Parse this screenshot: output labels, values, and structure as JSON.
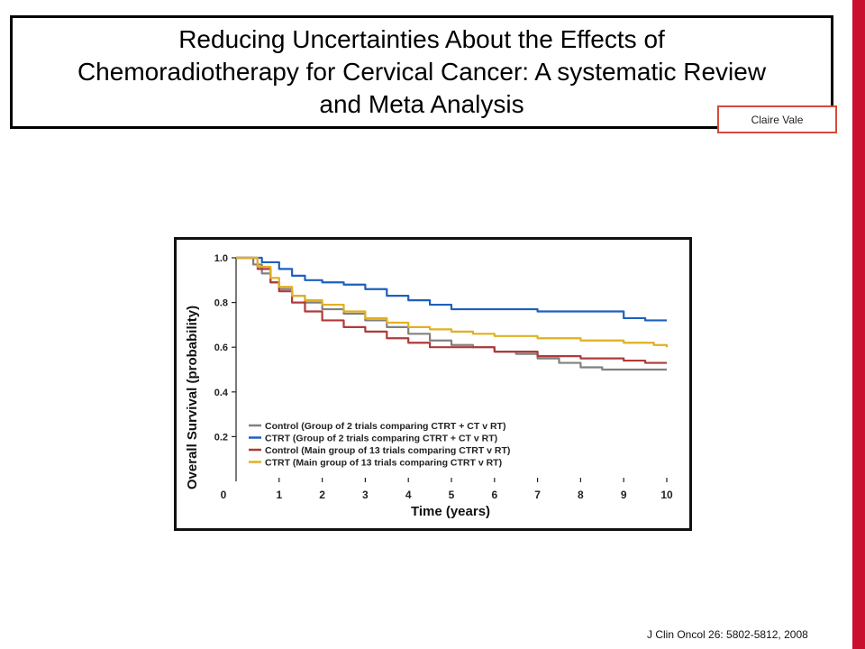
{
  "slide": {
    "title": "Reducing Uncertainties About the Effects of\nChemoradiotherapy for Cervical Cancer: A systematic Review\nand Meta Analysis",
    "author": "Claire Vale",
    "citation": "J Clin Oncol 26: 5802-5812, 2008",
    "accent_color": "#c8102e"
  },
  "chart_data": {
    "type": "line",
    "xlabel": "Time (years)",
    "ylabel": "Overall Survival (probability)",
    "xlim": [
      0,
      10
    ],
    "ylim": [
      0,
      1
    ],
    "x_ticks": [
      "0",
      "1",
      "2",
      "3",
      "4",
      "5",
      "6",
      "7",
      "8",
      "9",
      "10"
    ],
    "y_ticks": [
      "0.2",
      "0.4",
      "0.6",
      "0.8",
      "1.0"
    ],
    "y_tick_values": [
      0.2,
      0.4,
      0.6,
      0.8,
      1.0
    ],
    "legend_position": "bottom-left",
    "step": true,
    "series": [
      {
        "name": "Control (Group of 2 trials comparing CTRT + CT v RT)",
        "color": "#808080",
        "points": [
          [
            0,
            1.0
          ],
          [
            0.2,
            1.0
          ],
          [
            0.4,
            0.97
          ],
          [
            0.6,
            0.93
          ],
          [
            0.8,
            0.89
          ],
          [
            1,
            0.86
          ],
          [
            1.3,
            0.83
          ],
          [
            1.6,
            0.8
          ],
          [
            2,
            0.77
          ],
          [
            2.5,
            0.75
          ],
          [
            3,
            0.72
          ],
          [
            3.5,
            0.69
          ],
          [
            4,
            0.66
          ],
          [
            4.5,
            0.63
          ],
          [
            5,
            0.61
          ],
          [
            5.5,
            0.6
          ],
          [
            6,
            0.58
          ],
          [
            6.5,
            0.57
          ],
          [
            7,
            0.55
          ],
          [
            7.5,
            0.53
          ],
          [
            8,
            0.51
          ],
          [
            8.5,
            0.5
          ],
          [
            10,
            0.5
          ]
        ]
      },
      {
        "name": "CTRT (Group of 2 trials comparing CTRT + CT v RT)",
        "color": "#1f5fbf",
        "points": [
          [
            0,
            1.0
          ],
          [
            0.3,
            1.0
          ],
          [
            0.6,
            0.98
          ],
          [
            1,
            0.95
          ],
          [
            1.3,
            0.92
          ],
          [
            1.6,
            0.9
          ],
          [
            2,
            0.89
          ],
          [
            2.5,
            0.88
          ],
          [
            3,
            0.86
          ],
          [
            3.5,
            0.83
          ],
          [
            4,
            0.81
          ],
          [
            4.5,
            0.79
          ],
          [
            5,
            0.77
          ],
          [
            6,
            0.77
          ],
          [
            7,
            0.76
          ],
          [
            8.5,
            0.76
          ],
          [
            9,
            0.73
          ],
          [
            9.5,
            0.72
          ],
          [
            10,
            0.72
          ]
        ]
      },
      {
        "name": "Control (Main group of 13 trials comparing CTRT v RT)",
        "color": "#b03a3a",
        "points": [
          [
            0,
            1.0
          ],
          [
            0.2,
            1.0
          ],
          [
            0.5,
            0.95
          ],
          [
            0.8,
            0.89
          ],
          [
            1,
            0.85
          ],
          [
            1.3,
            0.8
          ],
          [
            1.6,
            0.76
          ],
          [
            2,
            0.72
          ],
          [
            2.5,
            0.69
          ],
          [
            3,
            0.67
          ],
          [
            3.5,
            0.64
          ],
          [
            4,
            0.62
          ],
          [
            4.5,
            0.6
          ],
          [
            5,
            0.6
          ],
          [
            6,
            0.58
          ],
          [
            7,
            0.56
          ],
          [
            8,
            0.55
          ],
          [
            9,
            0.54
          ],
          [
            9.5,
            0.53
          ],
          [
            10,
            0.53
          ]
        ]
      },
      {
        "name": "CTRT  (Main group of 13 trials comparing CTRT v RT)",
        "color": "#e0b020",
        "points": [
          [
            0,
            1.0
          ],
          [
            0.2,
            1.0
          ],
          [
            0.5,
            0.96
          ],
          [
            0.8,
            0.91
          ],
          [
            1,
            0.87
          ],
          [
            1.3,
            0.83
          ],
          [
            1.6,
            0.81
          ],
          [
            2,
            0.79
          ],
          [
            2.5,
            0.76
          ],
          [
            3,
            0.73
          ],
          [
            3.5,
            0.71
          ],
          [
            4,
            0.69
          ],
          [
            4.5,
            0.68
          ],
          [
            5,
            0.67
          ],
          [
            5.5,
            0.66
          ],
          [
            6,
            0.65
          ],
          [
            7,
            0.64
          ],
          [
            8,
            0.63
          ],
          [
            9,
            0.62
          ],
          [
            9.7,
            0.61
          ],
          [
            10,
            0.6
          ]
        ]
      }
    ]
  }
}
